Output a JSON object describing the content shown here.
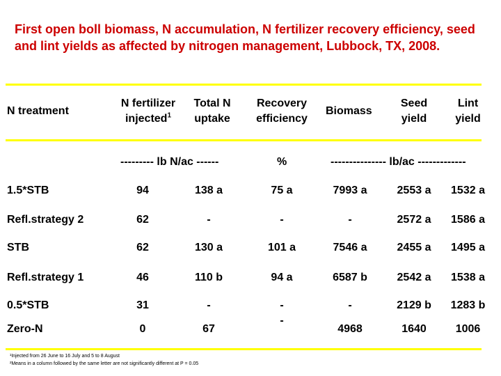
{
  "title": "First open boll biomass, N accumulation, N fertilizer recovery efficiency, seed and lint yields as affected by nitrogen management, Lubbock, TX, 2008.",
  "colors": {
    "title": "#cc0000",
    "rule": "#ffff00"
  },
  "headers": {
    "treatment": "N treatment",
    "fertilizer_line1": "N fertilizer",
    "fertilizer_line2": "injected",
    "fertilizer_sup": "1",
    "uptake_line1": "Total N",
    "uptake_line2": "uptake",
    "recovery_line1": "Recovery",
    "recovery_line2": "efficiency",
    "biomass": "Biomass",
    "seed_line1": "Seed",
    "seed_line2": "yield",
    "lint_line1": "Lint",
    "lint_line2": "yield"
  },
  "units": {
    "lb_n_ac": "--------- lb N/ac ------",
    "percent": "%",
    "lb_ac": "--------------- lb/ac -------------"
  },
  "rows": [
    {
      "treatment": "1.5*STB",
      "fertilizer": "94",
      "uptake": "138 a",
      "recovery": "75 a",
      "biomass": "7993 a",
      "seed": "2553 a",
      "lint": "1532 a"
    },
    {
      "treatment": "Refl.strategy  2",
      "fertilizer": "62",
      "uptake": "-",
      "recovery": "-",
      "biomass": "-",
      "seed": "2572 a",
      "lint": "1586 a"
    },
    {
      "treatment": "STB",
      "fertilizer": "62",
      "uptake": "130 a",
      "recovery": "101 a",
      "biomass": "7546 a",
      "seed": "2455 a",
      "lint": "1495 a"
    },
    {
      "treatment": "Refl.strategy 1",
      "fertilizer": "46",
      "uptake": "110 b",
      "recovery": "94 a",
      "biomass": "6587 b",
      "seed": "2542 a",
      "lint": "1538 a"
    },
    {
      "treatment": "0.5*STB",
      "fertilizer": "31",
      "uptake": "-",
      "recovery": "-",
      "biomass": "-",
      "seed": "2129 b",
      "lint": "1283 b"
    },
    {
      "treatment": "Zero-N",
      "fertilizer": "0",
      "uptake": "67",
      "recovery": "-",
      "biomass": "4968",
      "seed": "1640",
      "lint": "1006"
    }
  ],
  "footnotes": [
    "¹Injected from 26 June to 16 July and 5 to 8 August",
    "²Means in a column followed by the same letter are not significantly different at P = 0.05"
  ]
}
